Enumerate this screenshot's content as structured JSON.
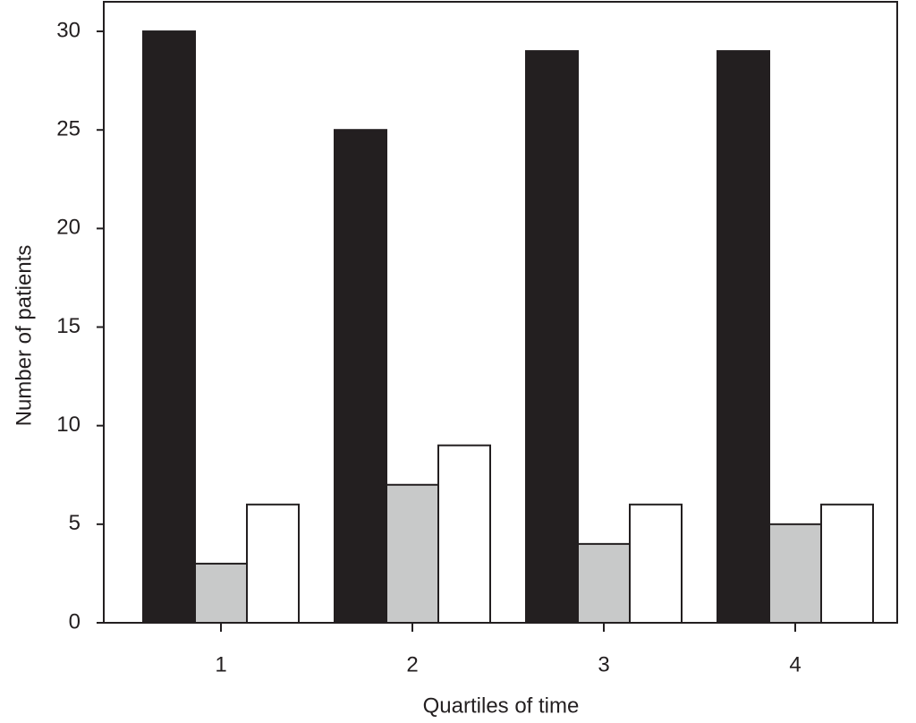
{
  "chart_data": {
    "type": "bar",
    "x_label": "Quartiles of time",
    "y_label": "Number of patients",
    "categories": [
      "1",
      "2",
      "3",
      "4"
    ],
    "series": [
      {
        "color": "#231f20",
        "values": [
          30,
          25,
          29,
          29
        ]
      },
      {
        "color": "#c8c9c9",
        "values": [
          3,
          7,
          4,
          5
        ]
      },
      {
        "color": "#ffffff",
        "values": [
          6,
          9,
          6,
          6
        ]
      }
    ],
    "ylim": [
      0,
      31.5
    ],
    "yticks": [
      0,
      5,
      10,
      15,
      20,
      25,
      30
    ],
    "grid": false
  }
}
